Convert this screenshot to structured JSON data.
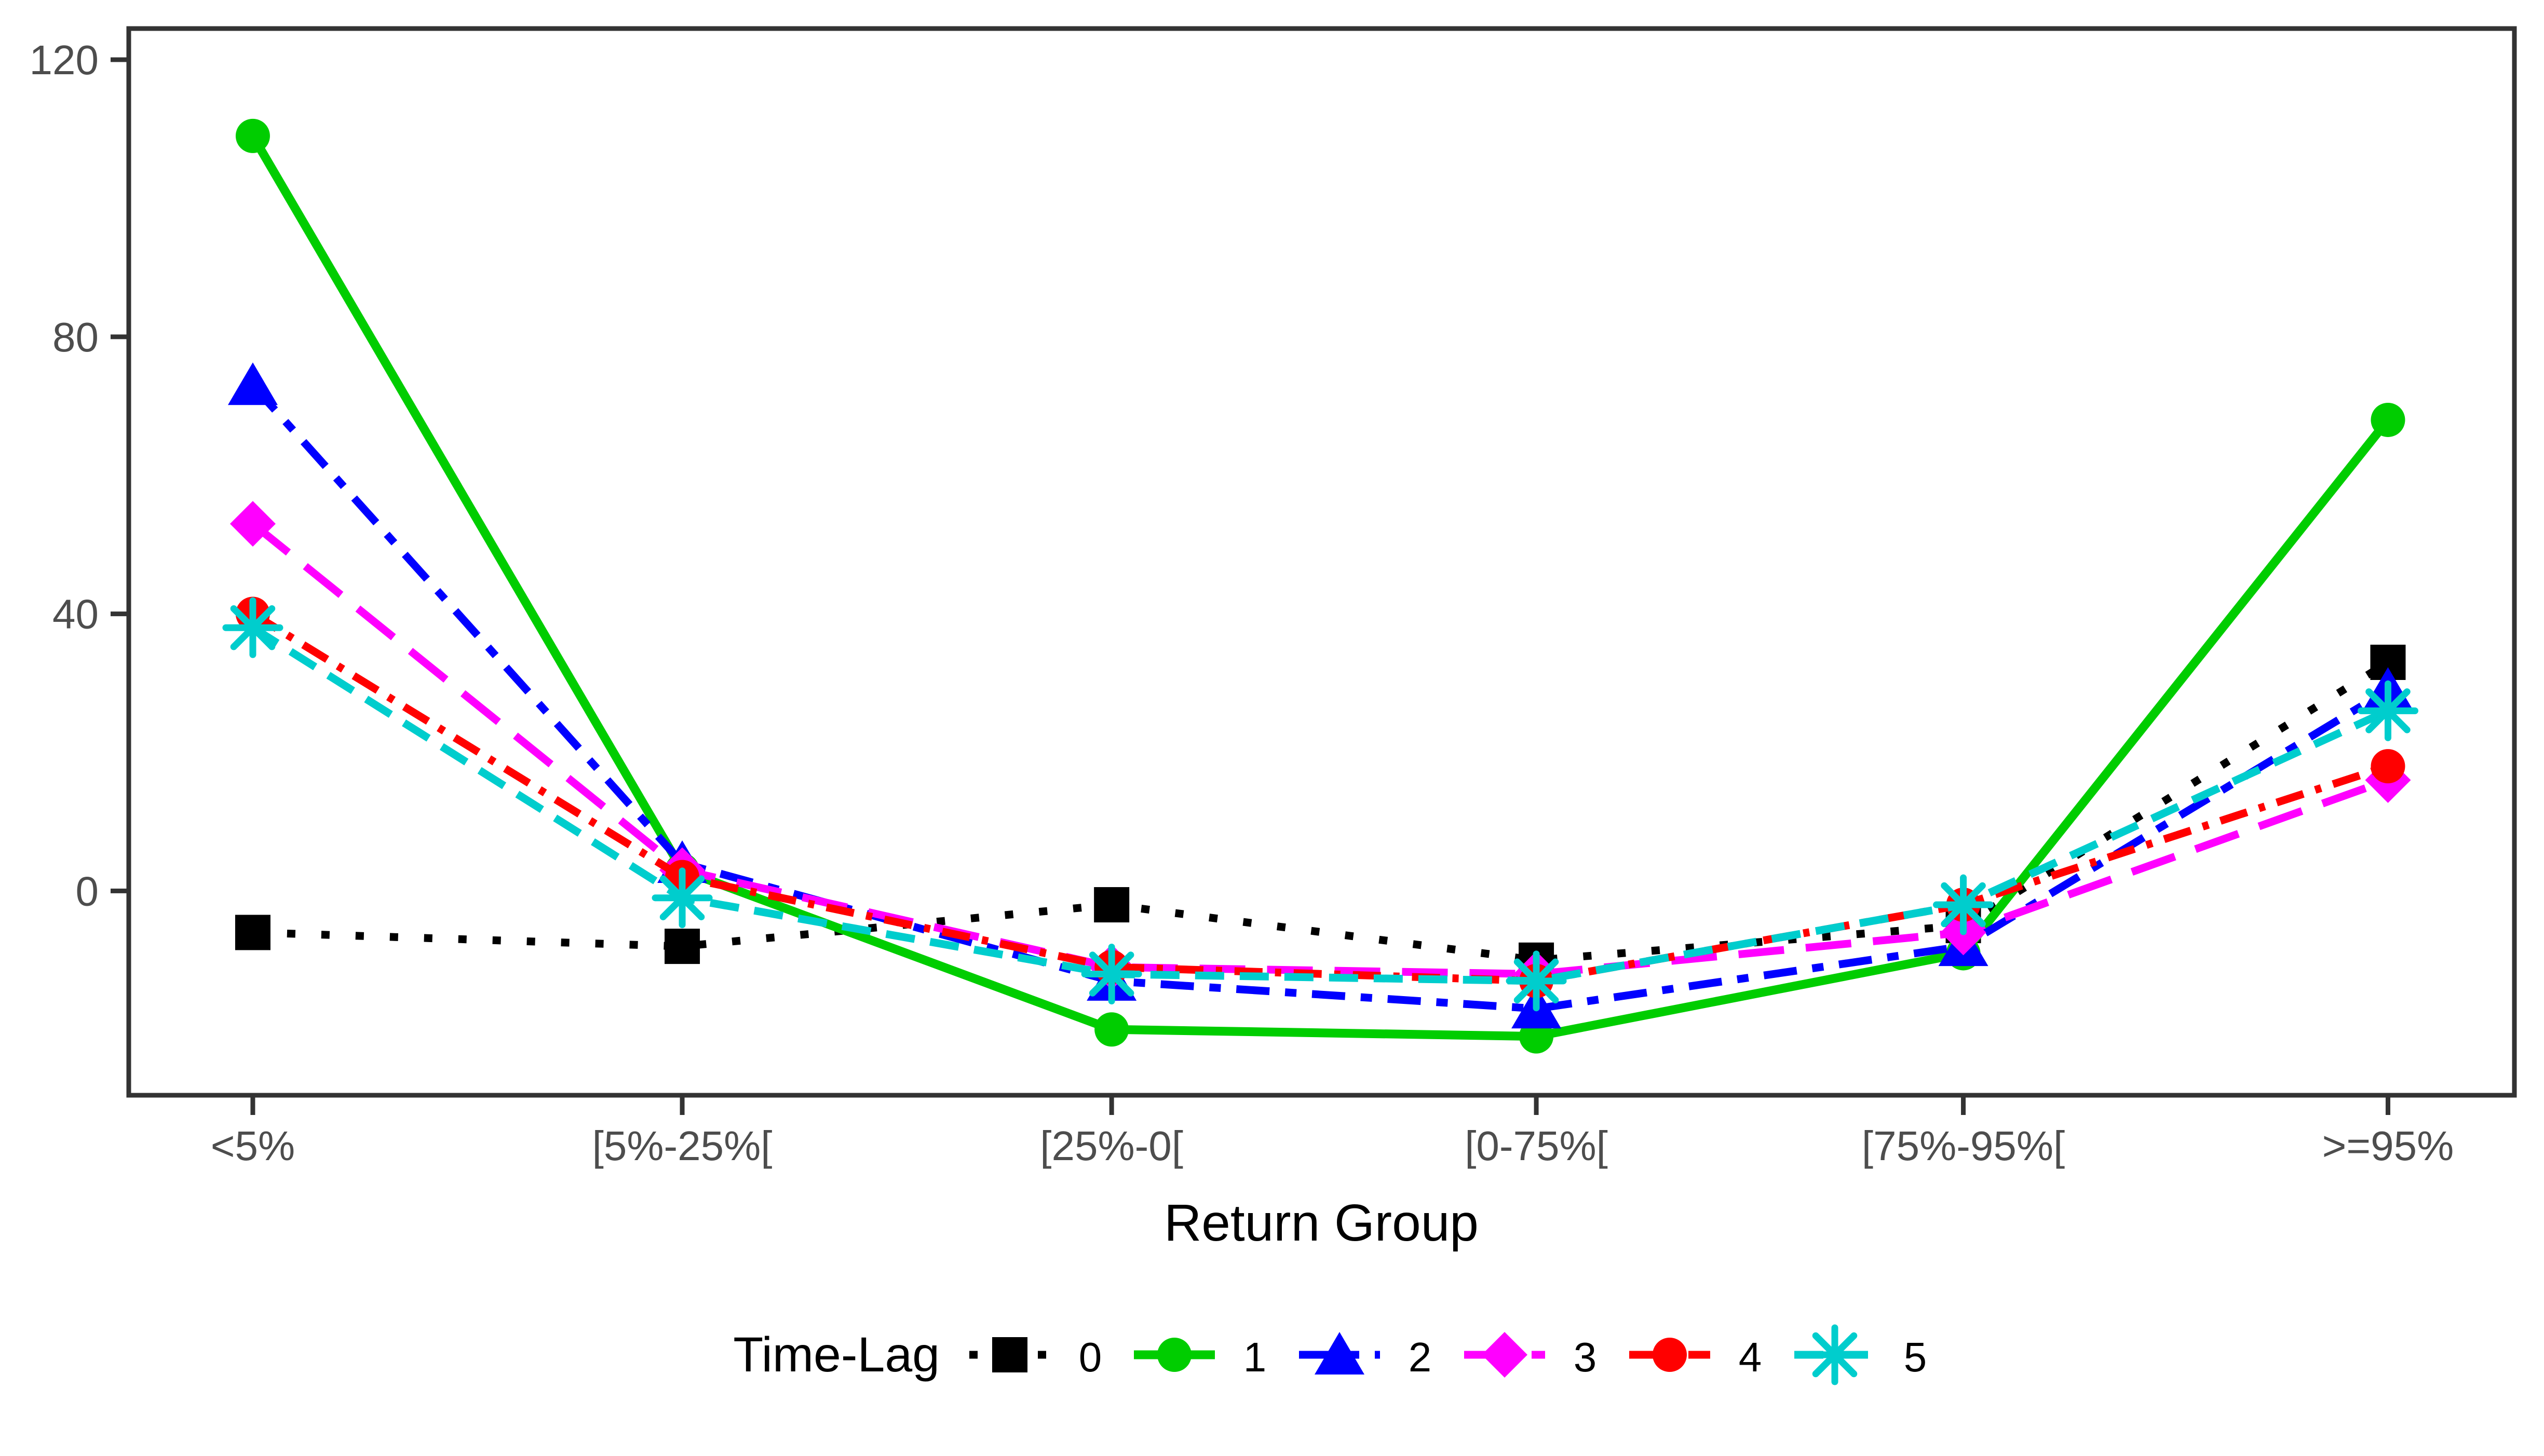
{
  "figure": {
    "background": "#FFFFFF",
    "panel_border_color": "#333333",
    "tick_mark_color": "#333333",
    "tick_label_color": "#4D4D4D"
  },
  "chart_data": {
    "type": "line",
    "title": "",
    "xlabel": "Return Group",
    "ylabel": "",
    "categories": [
      "<5%",
      "[5%-25%[",
      "[25%-0[",
      "[0-75%[",
      "[75%-95%[",
      ">=95%"
    ],
    "y_ticks": [
      0,
      40,
      80,
      120
    ],
    "ylim": [
      -29.5,
      124.5
    ],
    "grid": false,
    "legend_position": "bottom",
    "legend_title": "Time-Lag",
    "series": [
      {
        "name": "0",
        "color": "#000000",
        "marker": "square",
        "linetype": "dotted",
        "values": [
          -6,
          -8,
          -2,
          -10,
          -5,
          33
        ]
      },
      {
        "name": "1",
        "color": "#00CD00",
        "marker": "circle",
        "linetype": "solid",
        "values": [
          109,
          3,
          -20,
          -21,
          -9,
          68
        ]
      },
      {
        "name": "2",
        "color": "#0000FF",
        "marker": "triangle",
        "linetype": "longdash-dot",
        "values": [
          73,
          4,
          -13,
          -17,
          -8,
          29
        ]
      },
      {
        "name": "3",
        "color": "#FF00FF",
        "marker": "diamond",
        "linetype": "longdash",
        "values": [
          53,
          3,
          -11,
          -12,
          -6,
          16
        ]
      },
      {
        "name": "4",
        "color": "#FF0000",
        "marker": "circle",
        "linetype": "dashdot",
        "values": [
          40,
          2,
          -11,
          -13,
          -2,
          18
        ]
      },
      {
        "name": "5",
        "color": "#00CDCD",
        "marker": "asterisk",
        "linetype": "dashed",
        "values": [
          38,
          -1,
          -12,
          -13,
          -2,
          26
        ]
      }
    ]
  }
}
